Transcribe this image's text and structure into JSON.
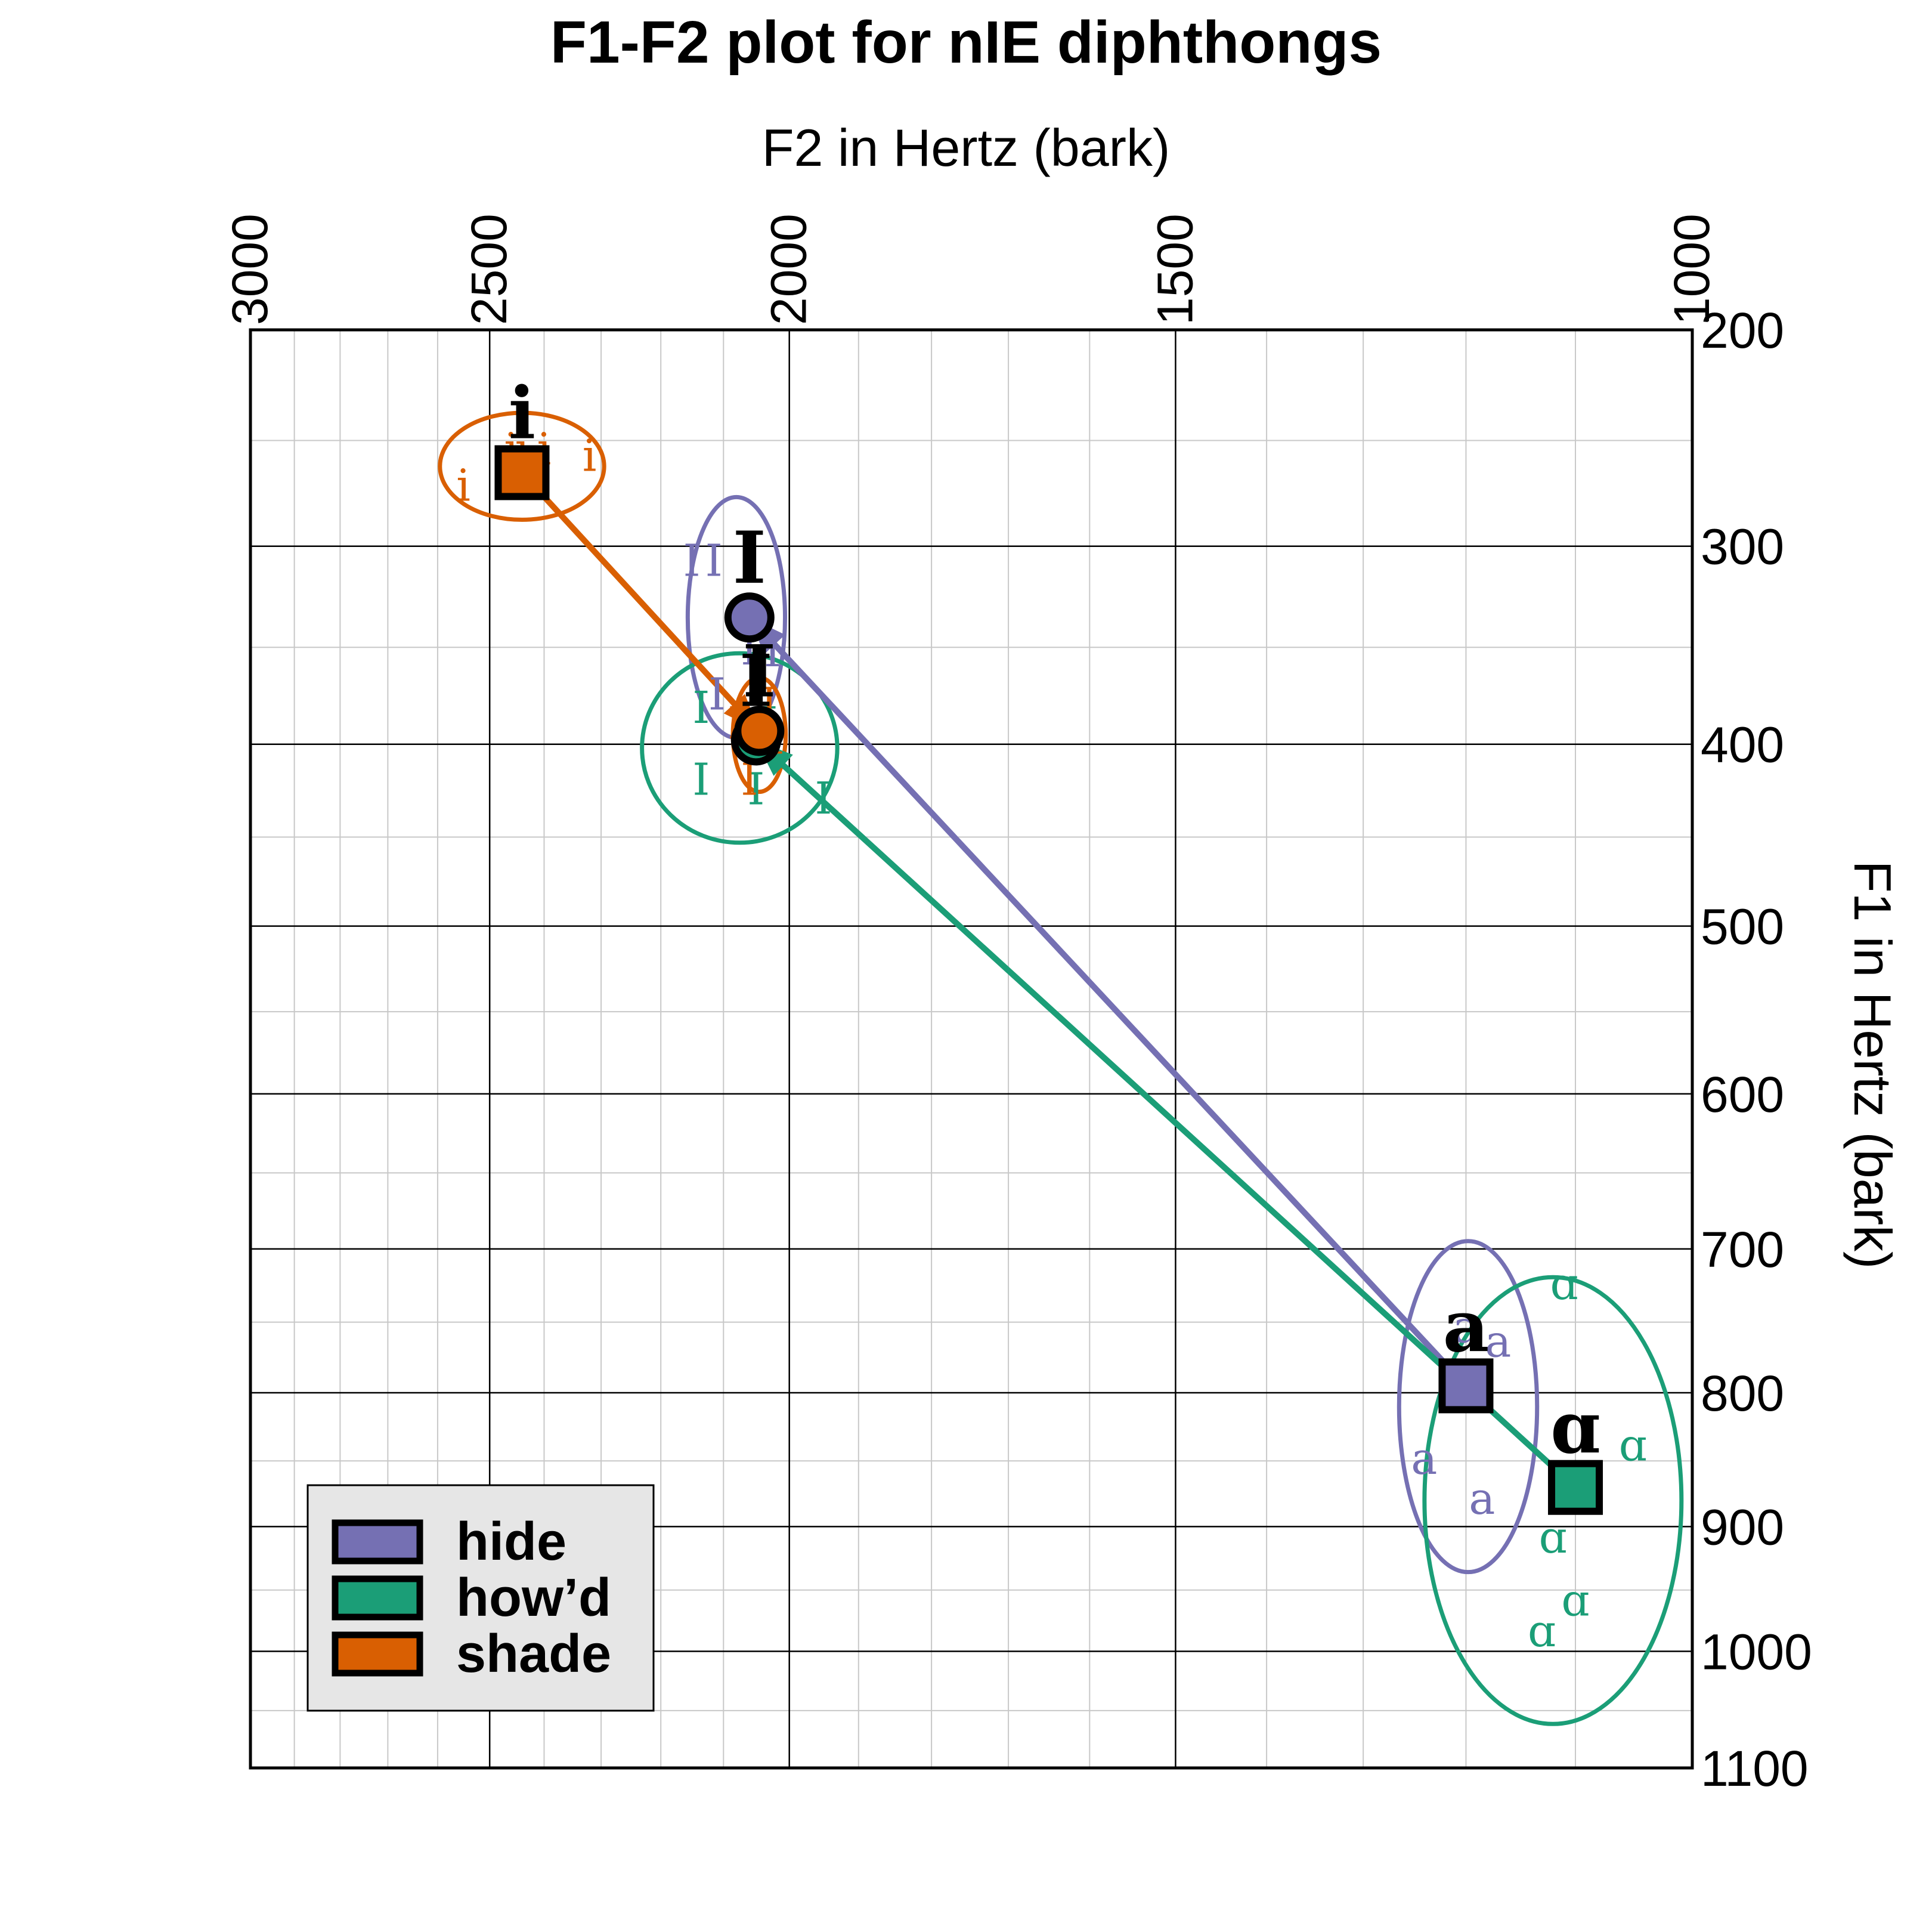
{
  "chart_data": {
    "type": "scatter",
    "title": "F1-F2 plot for nIE diphthongs",
    "xlabel": "F2 in Hertz (bark)",
    "ylabel": "F1 in Hertz (bark)",
    "x_axis": {
      "scale": "bark",
      "reversed": true,
      "position": "top",
      "range": [
        3000,
        1000
      ],
      "ticks": [
        3000,
        2500,
        2000,
        1500,
        1000
      ],
      "tick_labels": [
        "3000",
        "2500",
        "2000",
        "1500",
        "1000"
      ]
    },
    "y_axis": {
      "scale": "bark",
      "reversed": false,
      "position": "right",
      "range": [
        200,
        1100
      ],
      "ticks": [
        200,
        300,
        400,
        500,
        600,
        700,
        800,
        900,
        1000,
        1100
      ],
      "tick_labels": [
        "200",
        "300",
        "400",
        "500",
        "600",
        "700",
        "800",
        "900",
        "1000",
        "1100"
      ]
    },
    "grid": true,
    "legend": {
      "position": "bottom-left"
    },
    "series": [
      {
        "name": "hide",
        "color": "#7570b3",
        "onset": {
          "label": "a",
          "mean": [
            1200,
            795
          ],
          "tokens": [
            [
              1200,
              755
            ],
            [
              1170,
              765
            ],
            [
              1215,
              790
            ],
            [
              1240,
              850
            ],
            [
              1185,
              880
            ]
          ],
          "ellipse": {
            "center": [
              1198,
              810
            ],
            "half_width": 65,
            "half_height": 120
          }
        },
        "offset": {
          "label": "I",
          "mean": [
            2060,
            335
          ],
          "tokens": [
            [
              2150,
              308
            ],
            [
              2115,
              308
            ],
            [
              2060,
              352
            ],
            [
              2025,
              353
            ],
            [
              2110,
              375
            ]
          ],
          "ellipse": {
            "center": [
              2080,
              335
            ],
            "half_width": 75,
            "half_height": 60
          }
        }
      },
      {
        "name": "how’d",
        "color": "#1b9e77",
        "onset": {
          "label": "ɑ",
          "mean": [
            1100,
            870
          ],
          "tokens": [
            [
              1110,
              725
            ],
            [
              1050,
              840
            ],
            [
              1120,
              910
            ],
            [
              1100,
              960
            ],
            [
              1130,
              985
            ]
          ],
          "ellipse": {
            "center": [
              1120,
              880
            ],
            "half_width": 115,
            "half_height": 170
          }
        },
        "offset": {
          "label": "I",
          "mean": [
            2050,
            398
          ],
          "tokens": [
            [
              2135,
              382
            ],
            [
              2030,
              390
            ],
            [
              2135,
              420
            ],
            [
              2050,
              425
            ],
            [
              1950,
              430
            ]
          ],
          "ellipse": {
            "center": [
              2075,
              402
            ],
            "half_width": 150,
            "half_height": 50
          }
        }
      },
      {
        "name": "shade",
        "color": "#d95f02",
        "onset": {
          "label": "i",
          "mean": [
            2440,
            265
          ],
          "tokens": [
            [
              2440,
              255
            ],
            [
              2400,
              255
            ],
            [
              2460,
              255
            ],
            [
              2320,
              258
            ],
            [
              2550,
              272
            ]
          ],
          "ellipse": {
            "center": [
              2440,
              262
            ],
            "half_width": 150,
            "half_height": 25
          }
        },
        "offset": {
          "label": "I",
          "mean": [
            2045,
            393
          ],
          "tokens": [
            [
              2080,
              390
            ],
            [
              2030,
              380
            ],
            [
              2050,
              395
            ],
            [
              2020,
              398
            ],
            [
              2060,
              420
            ]
          ],
          "ellipse": {
            "center": [
              2045,
              395
            ],
            "half_width": 40,
            "half_height": 30
          }
        }
      }
    ]
  }
}
